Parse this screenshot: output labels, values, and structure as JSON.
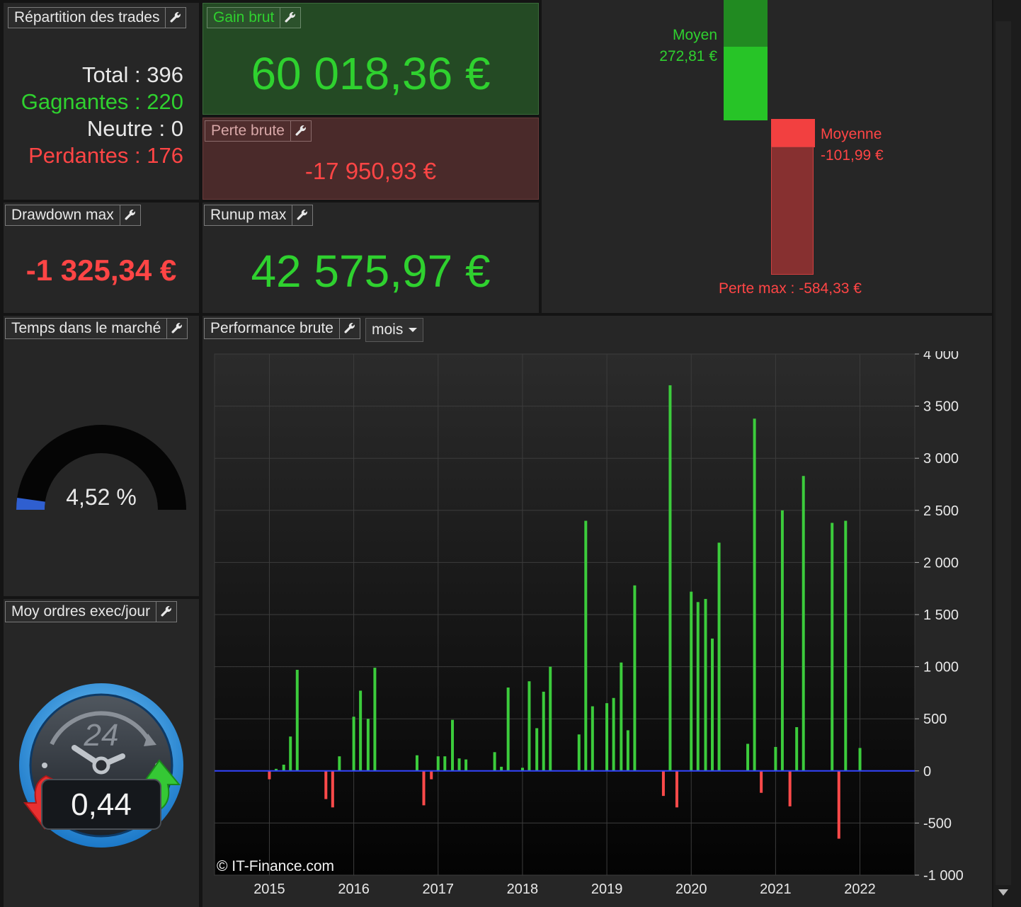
{
  "repartition": {
    "title": "Répartition des trades",
    "total": "Total : 396",
    "gagnantes": "Gagnantes : 220",
    "neutre": "Neutre : 0",
    "perdantes": "Perdantes : 176"
  },
  "gain_brut": {
    "title": "Gain brut",
    "value": "60 018,36 €"
  },
  "perte_brute": {
    "title": "Perte brute",
    "value": "-17 950,93 €"
  },
  "drawdown": {
    "title": "Drawdown max",
    "value": "-1 325,34 €"
  },
  "runup": {
    "title": "Runup max",
    "value": "42 575,97 €"
  },
  "averages": {
    "gain_label": "Moyen",
    "gain_value": "272,81 €",
    "loss_label": "Moyenne",
    "loss_value": "-101,99 €",
    "loss_max": "Perte max : -584,33 €"
  },
  "temps": {
    "title": "Temps dans le marché",
    "value": "4,52 %",
    "fraction": 0.0452
  },
  "moy_ordres": {
    "title": "Moy ordres exec/jour",
    "value": "0,44",
    "clock_label": "24"
  },
  "performance": {
    "title": "Performance brute",
    "period": "mois",
    "watermark": "© IT-Finance.com"
  },
  "colors": {
    "green": "#2fd12f",
    "red": "#ff4545",
    "zero_line": "#3344ff"
  },
  "chart_data": {
    "type": "bar",
    "ylim": [
      -1000,
      4000
    ],
    "yticks": [
      4000,
      3500,
      3000,
      2500,
      2000,
      1500,
      1000,
      500,
      0,
      -500,
      -1000
    ],
    "ytick_labels": [
      "4 000",
      "3 500",
      "3 000",
      "2 500",
      "2 000",
      "1 500",
      "1 000",
      "500",
      "0",
      "-500",
      "-1 000"
    ],
    "xticks": [
      2015,
      2016,
      2017,
      2018,
      2019,
      2020,
      2021,
      2022
    ],
    "xlim": [
      2014.35,
      2022.65
    ],
    "bars": [
      {
        "x": 2015.0,
        "v": -80
      },
      {
        "x": 2015.08,
        "v": 20
      },
      {
        "x": 2015.17,
        "v": 60
      },
      {
        "x": 2015.25,
        "v": 330
      },
      {
        "x": 2015.33,
        "v": 970
      },
      {
        "x": 2015.67,
        "v": -270
      },
      {
        "x": 2015.75,
        "v": -350
      },
      {
        "x": 2015.83,
        "v": 140
      },
      {
        "x": 2016.0,
        "v": 520
      },
      {
        "x": 2016.08,
        "v": 770
      },
      {
        "x": 2016.17,
        "v": 500
      },
      {
        "x": 2016.25,
        "v": 990
      },
      {
        "x": 2016.75,
        "v": 150
      },
      {
        "x": 2016.83,
        "v": -330
      },
      {
        "x": 2016.92,
        "v": -80
      },
      {
        "x": 2017.0,
        "v": 140
      },
      {
        "x": 2017.08,
        "v": 140
      },
      {
        "x": 2017.17,
        "v": 490
      },
      {
        "x": 2017.25,
        "v": 120
      },
      {
        "x": 2017.33,
        "v": 110
      },
      {
        "x": 2017.67,
        "v": 180
      },
      {
        "x": 2017.75,
        "v": 40
      },
      {
        "x": 2017.83,
        "v": 800
      },
      {
        "x": 2018.0,
        "v": 30
      },
      {
        "x": 2018.08,
        "v": 860
      },
      {
        "x": 2018.17,
        "v": 410
      },
      {
        "x": 2018.25,
        "v": 760
      },
      {
        "x": 2018.33,
        "v": 1000
      },
      {
        "x": 2018.67,
        "v": 350
      },
      {
        "x": 2018.75,
        "v": 2400
      },
      {
        "x": 2018.83,
        "v": 620
      },
      {
        "x": 2019.0,
        "v": 650
      },
      {
        "x": 2019.08,
        "v": 700
      },
      {
        "x": 2019.17,
        "v": 1040
      },
      {
        "x": 2019.25,
        "v": 390
      },
      {
        "x": 2019.33,
        "v": 1780
      },
      {
        "x": 2019.67,
        "v": -240
      },
      {
        "x": 2019.75,
        "v": 3700
      },
      {
        "x": 2019.83,
        "v": -350
      },
      {
        "x": 2020.0,
        "v": 1720
      },
      {
        "x": 2020.08,
        "v": 1620
      },
      {
        "x": 2020.17,
        "v": 1650
      },
      {
        "x": 2020.25,
        "v": 1270
      },
      {
        "x": 2020.33,
        "v": 2190
      },
      {
        "x": 2020.67,
        "v": 260
      },
      {
        "x": 2020.75,
        "v": 3380
      },
      {
        "x": 2020.83,
        "v": -210
      },
      {
        "x": 2021.0,
        "v": 230
      },
      {
        "x": 2021.08,
        "v": 2500
      },
      {
        "x": 2021.17,
        "v": -340
      },
      {
        "x": 2021.25,
        "v": 420
      },
      {
        "x": 2021.33,
        "v": 2830
      },
      {
        "x": 2021.67,
        "v": 2380
      },
      {
        "x": 2021.75,
        "v": -650
      },
      {
        "x": 2021.83,
        "v": 2400
      },
      {
        "x": 2022.0,
        "v": 220
      }
    ]
  }
}
